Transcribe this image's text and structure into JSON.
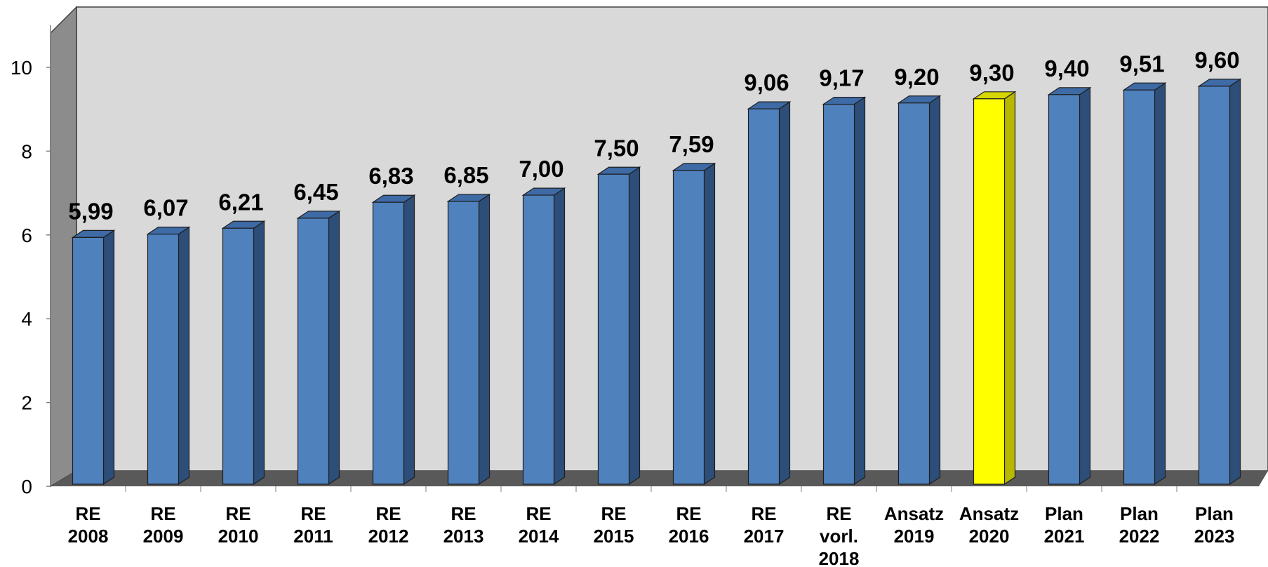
{
  "chart_data": {
    "type": "bar",
    "title": "",
    "xlabel": "",
    "ylabel": "",
    "ylim": [
      0,
      10
    ],
    "yticks": [
      "0",
      "2",
      "4",
      "6",
      "8",
      "10"
    ],
    "grid": false,
    "legend": "none",
    "categories": [
      [
        "RE",
        "2008"
      ],
      [
        "RE",
        "2009"
      ],
      [
        "RE",
        "2010"
      ],
      [
        "RE",
        "2011"
      ],
      [
        "RE",
        "2012"
      ],
      [
        "RE",
        "2013"
      ],
      [
        "RE",
        "2014"
      ],
      [
        "RE",
        "2015"
      ],
      [
        "RE",
        "2016"
      ],
      [
        "RE",
        "2017"
      ],
      [
        "RE",
        "vorl.",
        "2018"
      ],
      [
        "Ansatz",
        "2019"
      ],
      [
        "Ansatz",
        "2020"
      ],
      [
        "Plan",
        "2021"
      ],
      [
        "Plan",
        "2022"
      ],
      [
        "Plan",
        "2023"
      ]
    ],
    "values": [
      5.99,
      6.07,
      6.21,
      6.45,
      6.83,
      6.85,
      7.0,
      7.5,
      7.59,
      9.06,
      9.17,
      9.2,
      9.3,
      9.4,
      9.51,
      9.6
    ],
    "data_labels": [
      "5,99",
      "6,07",
      "6,21",
      "6,45",
      "6,83",
      "6,85",
      "7,00",
      "7,50",
      "7,59",
      "9,06",
      "9,17",
      "9,20",
      "9,30",
      "9,40",
      "9,51",
      "9,60"
    ],
    "highlight_index": 12,
    "colors": {
      "bar": "#4f81bd",
      "bar_side": "#2d4e79",
      "bar_top": "#3e6aa5",
      "highlight": "#ffff00",
      "highlight_side": "#b8b800",
      "highlight_top": "#d6d600",
      "back_wall": "#d9d9d9",
      "side_wall": "#8c8c8c",
      "floor": "#595959"
    }
  }
}
